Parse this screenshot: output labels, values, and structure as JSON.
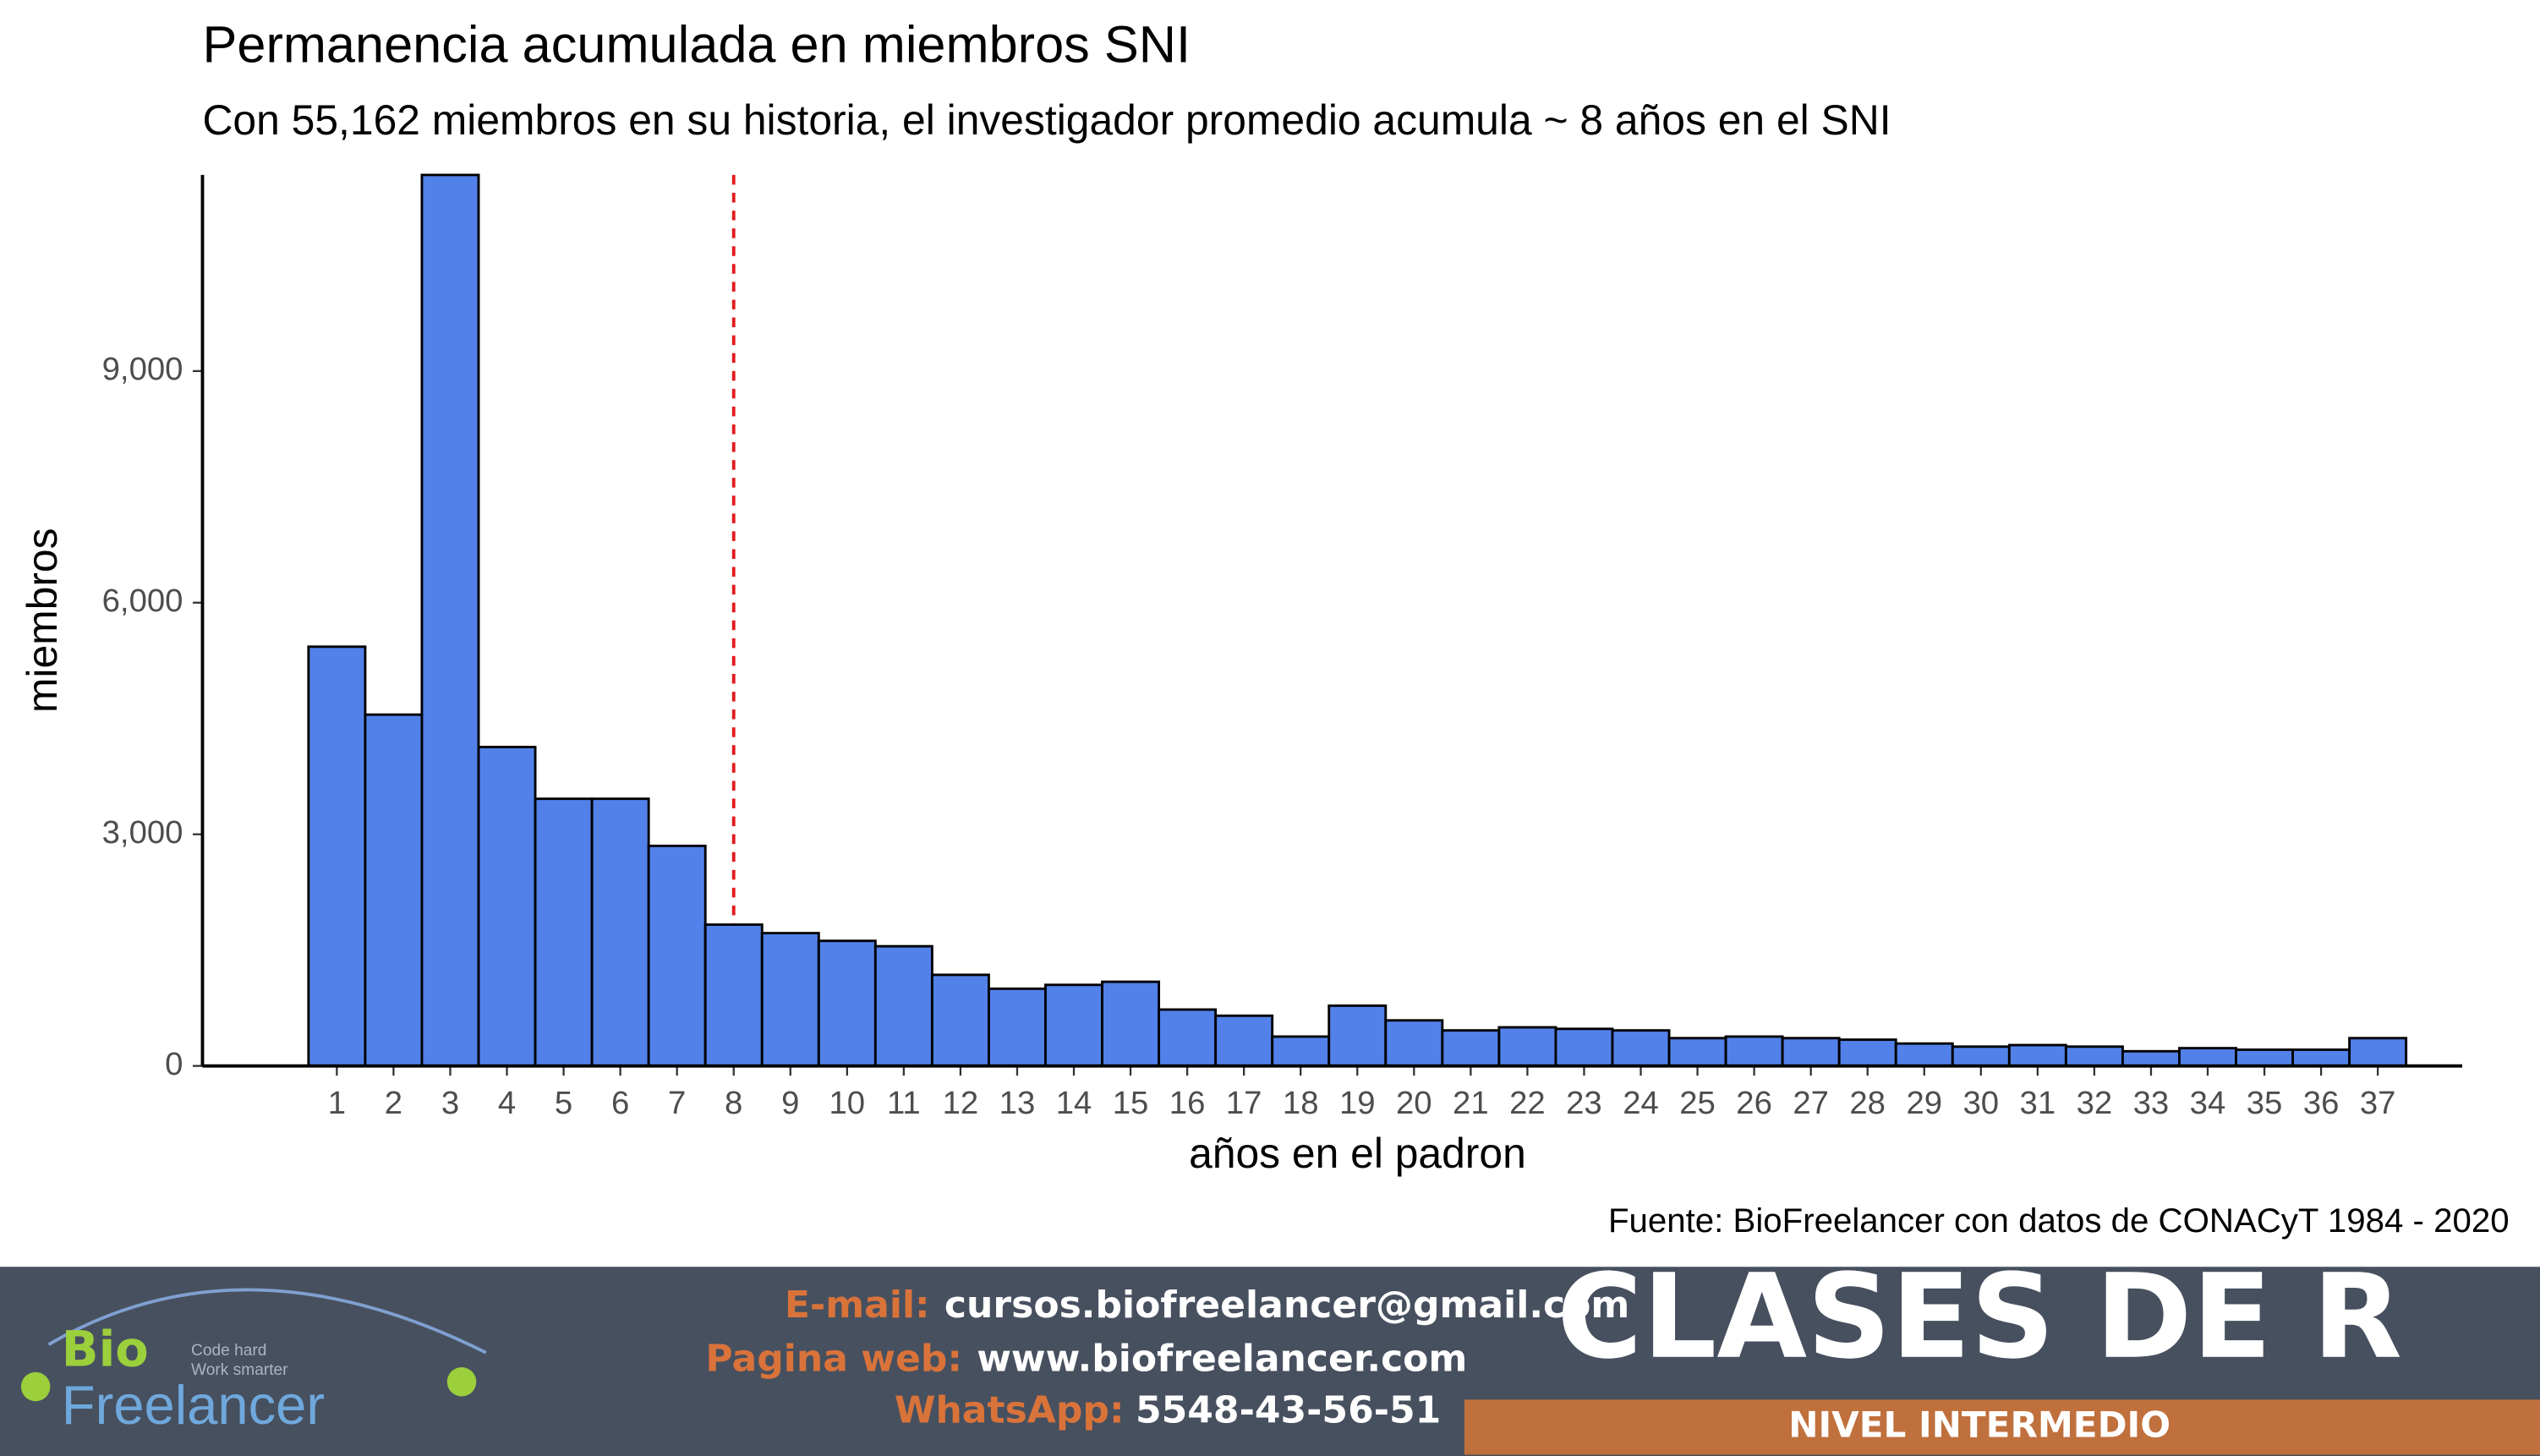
{
  "chart_data": {
    "type": "bar",
    "title": "Permanencia acumulada en miembros SNI",
    "subtitle": "Con 55,162 miembros en su historia, el investigador promedio acumula ~ 8 años en el SNI",
    "x_label": "años en el padron",
    "y_label": "miembros",
    "caption": "Fuente: BioFreelancer con datos de CONACyT 1984 - 2020",
    "x": [
      1,
      2,
      3,
      4,
      5,
      6,
      7,
      8,
      9,
      10,
      11,
      12,
      13,
      14,
      15,
      16,
      17,
      18,
      19,
      20,
      21,
      22,
      23,
      24,
      25,
      26,
      27,
      28,
      29,
      30,
      31,
      32,
      33,
      34,
      35,
      36,
      37
    ],
    "values": [
      5430,
      4550,
      11540,
      4130,
      3460,
      3460,
      2850,
      1830,
      1720,
      1620,
      1550,
      1180,
      1000,
      1050,
      1090,
      730,
      650,
      380,
      780,
      590,
      460,
      500,
      480,
      460,
      360,
      380,
      360,
      340,
      290,
      250,
      270,
      250,
      190,
      230,
      210,
      210,
      360
    ],
    "color": "#5381ea",
    "edge_color": "#000000",
    "xlim": [
      -1.37,
      38.49
    ],
    "xticks": [
      1,
      2,
      3,
      4,
      5,
      6,
      7,
      8,
      9,
      10,
      11,
      12,
      13,
      14,
      15,
      16,
      17,
      18,
      19,
      20,
      21,
      22,
      23,
      24,
      25,
      26,
      27,
      28,
      29,
      30,
      31,
      32,
      33,
      34,
      35,
      36,
      37
    ],
    "ylim": [
      0,
      11540
    ],
    "yticks": [
      0,
      {
        "value": 3000,
        "label": "3,000"
      },
      {
        "value": 6000,
        "label": "6,000"
      },
      {
        "value": 9000,
        "label": "9,000"
      }
    ],
    "grid": false,
    "vline": 8,
    "vline_color": "#e41a1c"
  },
  "banner": {
    "logo_top": "Bio",
    "logo_bottom": "Freelancer",
    "slogan_1": "Code hard",
    "slogan_2": "Work smarter",
    "email_label": "E-mail:",
    "email": "cursos.biofreelancer@gmail.com",
    "web_label": "Pagina web:",
    "web": "www.biofreelancer.com",
    "phone_label": "WhatsApp:",
    "phone": "5548-43-56-51",
    "heading": "CLASES DE R",
    "level": "NIVEL INTERMEDIO"
  }
}
